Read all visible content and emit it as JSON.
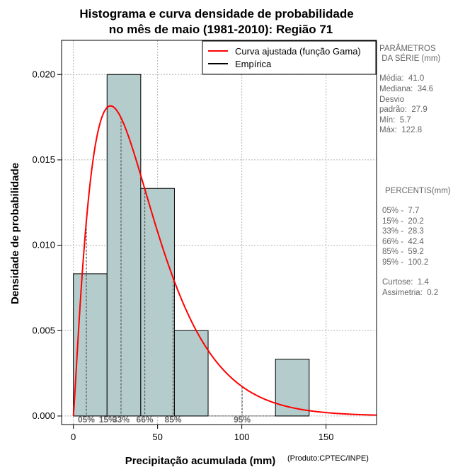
{
  "chart_data": {
    "type": "bar",
    "title_line1": "Histograma e curva densidade de probabilidade",
    "title_line2": "no mês de maio (1981-2010): Região 71",
    "xlabel": "Precipitação acumulada (mm)",
    "ylabel": "Densidade de probabilidade",
    "credit": "(Produto:CPTEC/INPE)",
    "xlim": [
      -7,
      180
    ],
    "ylim": [
      -0.0005,
      0.022
    ],
    "x_ticks": [
      0,
      50,
      100,
      150
    ],
    "x_tick_labels": [
      "0",
      "50",
      "100",
      "150"
    ],
    "y_ticks": [
      0.0,
      0.005,
      0.01,
      0.015,
      0.02
    ],
    "y_tick_labels": [
      "0.000",
      "0.005",
      "0.010",
      "0.015",
      "0.020"
    ],
    "grid": true,
    "bins": [
      {
        "start": 0,
        "end": 20,
        "density": 0.00833
      },
      {
        "start": 20,
        "end": 40,
        "density": 0.02
      },
      {
        "start": 40,
        "end": 60,
        "density": 0.01333
      },
      {
        "start": 60,
        "end": 80,
        "density": 0.005
      },
      {
        "start": 80,
        "end": 100,
        "density": 0.0
      },
      {
        "start": 100,
        "end": 120,
        "density": 0.0
      },
      {
        "start": 120,
        "end": 140,
        "density": 0.00333
      }
    ],
    "bar_color": "#b5cccc",
    "gamma_fit": {
      "shape": 2.16,
      "rate": 0.0526,
      "color": "#ff0000"
    },
    "percentile_markers": [
      {
        "label": "05%",
        "value": 7.7
      },
      {
        "label": "15%",
        "value": 20.2
      },
      {
        "label": "33%",
        "value": 28.3
      },
      {
        "label": "66%",
        "value": 42.4
      },
      {
        "label": "85%",
        "value": 59.2
      },
      {
        "label": "95%",
        "value": 100.2
      }
    ],
    "legend": [
      {
        "label": "Curva ajustada (função Gama)",
        "color": "#ff0000"
      },
      {
        "label": "Empírica",
        "color": "#000000"
      }
    ],
    "legend_position": "top-right"
  },
  "stats_panel": {
    "params_title_1": "PARÂMETROS",
    "params_title_2": " DA SÉRIE (mm)",
    "media": "Média:  41.0",
    "mediana": "Mediana:  34.6",
    "desvio_1": "Desvio",
    "desvio_2": "padrão:  27.9",
    "min": "Mín:  5.7",
    "max": "Máx:  122.8",
    "percentis_title": "PERCENTIS(mm)",
    "p05": "05% -  7.7",
    "p15": "15% -  20.2",
    "p33": "33% -  28.3",
    "p66": "66% -  42.4",
    "p85": "85% -  59.2",
    "p95": "95% -  100.2",
    "curtose": "Curtose:  1.4",
    "assimetria": "Assimetria:  0.2"
  }
}
